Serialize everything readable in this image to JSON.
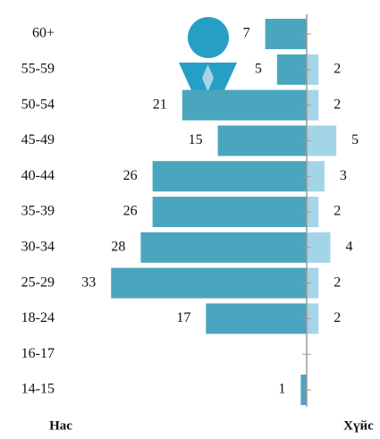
{
  "chart_data": {
    "type": "bar",
    "orientation": "diverging-horizontal",
    "categories": [
      "60+",
      "55-59",
      "50-54",
      "45-49",
      "40-44",
      "35-39",
      "30-34",
      "25-29",
      "18-24",
      "16-17",
      "14-15"
    ],
    "series": [
      {
        "color": "#4aa5be",
        "side": "left",
        "values": [
          7,
          5,
          21,
          15,
          26,
          26,
          28,
          33,
          17,
          null,
          1
        ]
      },
      {
        "color": "#a4d4e7",
        "side": "right",
        "values": [
          null,
          2,
          2,
          5,
          3,
          2,
          4,
          2,
          2,
          null,
          null
        ]
      }
    ],
    "xlim": [
      0,
      35
    ],
    "y_axis_label": "Нас",
    "x_axis_label": "Хүйс"
  }
}
